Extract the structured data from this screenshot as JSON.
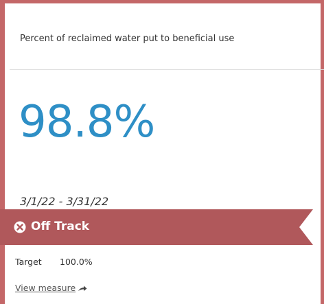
{
  "card": {
    "title": "Percent of reclaimed water put to beneficial use",
    "value": "98.8%",
    "period": "3/1/22 - 3/31/22",
    "status": "Off Track",
    "target_label": "Target",
    "target_value": "100.0%",
    "link": "View measure"
  }
}
